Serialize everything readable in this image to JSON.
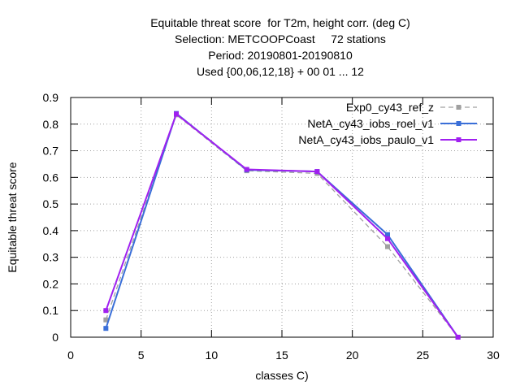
{
  "chart_data": {
    "type": "line",
    "title_lines": [
      "Equitable threat score  for T2m, height corr. (deg C)",
      "Selection: METCOOPCoast     72 stations",
      "Period: 20190801-20190810",
      "Used {00,06,12,18} + 00 01 ... 12"
    ],
    "xlabel": "classes C)",
    "ylabel": "Equitable threat score",
    "xlim": [
      0,
      30
    ],
    "ylim": [
      0,
      0.9
    ],
    "xticks": [
      "0",
      "5",
      "10",
      "15",
      "20",
      "25",
      "30"
    ],
    "yticks": [
      "0",
      "0.1",
      "0.2",
      "0.3",
      "0.4",
      "0.5",
      "0.6",
      "0.7",
      "0.8",
      "0.9"
    ],
    "grid": true,
    "legend_position": "top-right",
    "series": [
      {
        "name": "Exp0_cy43_ref_z",
        "color": "#a0a0a0",
        "dashed": true,
        "x": [
          2.5,
          7.5,
          12.5,
          17.5,
          22.5,
          27.5
        ],
        "y": [
          0.065,
          0.835,
          0.625,
          0.615,
          0.34,
          0.0
        ]
      },
      {
        "name": "NetA_cy43_iobs_roel_v1",
        "color": "#3a6fd8",
        "dashed": false,
        "x": [
          2.5,
          7.5,
          12.5,
          17.5,
          22.5,
          27.5
        ],
        "y": [
          0.033,
          0.84,
          0.628,
          0.622,
          0.385,
          0.0
        ]
      },
      {
        "name": "NetA_cy43_iobs_paulo_v1",
        "color": "#a020f0",
        "dashed": false,
        "x": [
          2.5,
          7.5,
          12.5,
          17.5,
          22.5,
          27.5
        ],
        "y": [
          0.1,
          0.838,
          0.63,
          0.622,
          0.37,
          0.0
        ]
      }
    ]
  }
}
